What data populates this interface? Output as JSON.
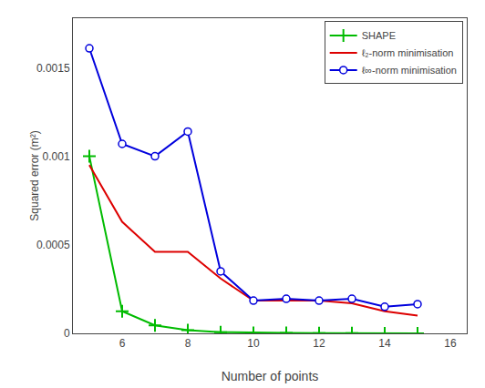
{
  "chart_data": {
    "type": "line",
    "x_label": "Number of points",
    "y_label": "Squared error (m²)",
    "x": [
      5,
      6,
      7,
      8,
      9,
      10,
      11,
      12,
      13,
      14,
      15
    ],
    "series": [
      {
        "name": "SHAPE",
        "color": "#00bb00",
        "marker": "plus",
        "values": [
          0.001,
          0.000125,
          4.5e-05,
          1.8e-05,
          7e-06,
          3e-06,
          2.5e-06,
          1.5e-06,
          1.3e-06,
          4e-07,
          2e-07
        ]
      },
      {
        "name": "ℓ₂-norm minimisation",
        "color": "#dd0000",
        "marker": "none",
        "values": [
          0.00095,
          0.00063,
          0.00046,
          0.00046,
          0.00031,
          0.000185,
          0.000185,
          0.000185,
          0.00017,
          0.000125,
          0.0001
        ]
      },
      {
        "name": "ℓ∞-norm minimisation",
        "color": "#0000dd",
        "marker": "circle-open",
        "values": [
          0.00161,
          0.00107,
          0.001,
          0.00114,
          0.00035,
          0.000185,
          0.000195,
          0.000185,
          0.000195,
          0.00015,
          0.000165
        ]
      }
    ],
    "xlim": [
      4.5,
      16.5
    ],
    "ylim": [
      0,
      0.00178
    ],
    "xticks": [
      6,
      8,
      10,
      12,
      14,
      16
    ],
    "yticks": [
      0,
      0.0005,
      0.001,
      0.0015
    ],
    "grid": false,
    "legend": "upper right"
  }
}
